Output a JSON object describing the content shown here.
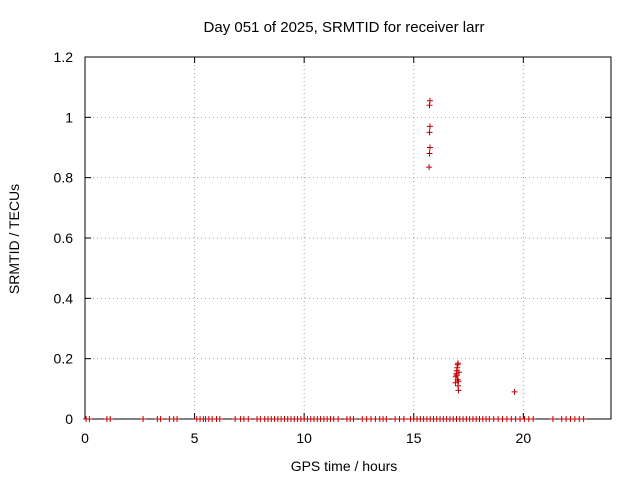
{
  "chart_data": {
    "type": "scatter",
    "title": "Day 051 of 2025, SRMTID for receiver larr",
    "xlabel": "GPS time / hours",
    "ylabel": "SRMTID / TECUs",
    "xlim": [
      0,
      24
    ],
    "ylim": [
      0,
      1.2
    ],
    "xticks": [
      0,
      5,
      10,
      15,
      20
    ],
    "yticks": [
      0,
      0.2,
      0.4,
      0.6,
      0.8,
      1,
      1.2
    ],
    "xtick_labels": [
      "0",
      "5",
      "10",
      "15",
      "20"
    ],
    "ytick_labels": [
      "0",
      "0.2",
      "0.4",
      "0.6",
      "0.8",
      "1",
      "1.2"
    ],
    "grid": true,
    "marker": "+",
    "color": "#c00000",
    "series": [
      {
        "name": "SRMTID",
        "points": [
          [
            0.05,
            0
          ],
          [
            0.2,
            0
          ],
          [
            1.0,
            0
          ],
          [
            1.15,
            0
          ],
          [
            2.65,
            0
          ],
          [
            3.3,
            0
          ],
          [
            3.45,
            0
          ],
          [
            3.85,
            0
          ],
          [
            4.05,
            0
          ],
          [
            4.2,
            0
          ],
          [
            5.1,
            0
          ],
          [
            5.25,
            0
          ],
          [
            5.4,
            0
          ],
          [
            5.5,
            0
          ],
          [
            5.65,
            0
          ],
          [
            5.8,
            0
          ],
          [
            6.0,
            0
          ],
          [
            6.15,
            0
          ],
          [
            6.85,
            0
          ],
          [
            7.1,
            0
          ],
          [
            7.25,
            0
          ],
          [
            7.45,
            0
          ],
          [
            7.85,
            0
          ],
          [
            8.0,
            0
          ],
          [
            8.2,
            0
          ],
          [
            8.35,
            0
          ],
          [
            8.5,
            0
          ],
          [
            8.65,
            0
          ],
          [
            8.8,
            0
          ],
          [
            8.95,
            0
          ],
          [
            9.1,
            0
          ],
          [
            9.25,
            0
          ],
          [
            9.4,
            0
          ],
          [
            9.55,
            0
          ],
          [
            9.7,
            0
          ],
          [
            9.85,
            0
          ],
          [
            10.0,
            0
          ],
          [
            10.15,
            0
          ],
          [
            10.3,
            0
          ],
          [
            10.45,
            0
          ],
          [
            10.6,
            0
          ],
          [
            10.75,
            0
          ],
          [
            10.9,
            0
          ],
          [
            11.05,
            0
          ],
          [
            11.2,
            0
          ],
          [
            11.35,
            0
          ],
          [
            11.55,
            0
          ],
          [
            11.95,
            0
          ],
          [
            12.1,
            0
          ],
          [
            12.25,
            0
          ],
          [
            12.65,
            0
          ],
          [
            12.85,
            0
          ],
          [
            13.05,
            0
          ],
          [
            13.25,
            0
          ],
          [
            13.45,
            0
          ],
          [
            13.6,
            0
          ],
          [
            13.75,
            0
          ],
          [
            14.15,
            0
          ],
          [
            14.35,
            0
          ],
          [
            14.55,
            0
          ],
          [
            14.85,
            0
          ],
          [
            15.0,
            0
          ],
          [
            15.15,
            0
          ],
          [
            15.3,
            0
          ],
          [
            15.45,
            0
          ],
          [
            15.6,
            0
          ],
          [
            15.75,
            0
          ],
          [
            15.9,
            0
          ],
          [
            16.05,
            0
          ],
          [
            16.2,
            0
          ],
          [
            16.35,
            0
          ],
          [
            16.5,
            0
          ],
          [
            16.65,
            0
          ],
          [
            16.8,
            0
          ],
          [
            16.95,
            0
          ],
          [
            17.1,
            0
          ],
          [
            17.25,
            0
          ],
          [
            17.4,
            0
          ],
          [
            17.55,
            0
          ],
          [
            17.7,
            0
          ],
          [
            17.85,
            0
          ],
          [
            18.0,
            0
          ],
          [
            18.15,
            0
          ],
          [
            18.3,
            0
          ],
          [
            18.45,
            0
          ],
          [
            18.65,
            0
          ],
          [
            18.85,
            0
          ],
          [
            19.05,
            0
          ],
          [
            19.25,
            0
          ],
          [
            19.45,
            0
          ],
          [
            19.65,
            0
          ],
          [
            19.85,
            0
          ],
          [
            20.05,
            0
          ],
          [
            20.25,
            0
          ],
          [
            20.45,
            0
          ],
          [
            21.35,
            0
          ],
          [
            21.75,
            0
          ],
          [
            21.95,
            0
          ],
          [
            22.15,
            0
          ],
          [
            22.35,
            0
          ],
          [
            22.55,
            0
          ],
          [
            22.75,
            0
          ],
          [
            15.7,
            0.835
          ],
          [
            15.72,
            0.88
          ],
          [
            15.74,
            0.9
          ],
          [
            15.72,
            0.95
          ],
          [
            15.74,
            0.97
          ],
          [
            15.72,
            1.04
          ],
          [
            15.74,
            1.055
          ],
          [
            16.9,
            0.12
          ],
          [
            16.92,
            0.14
          ],
          [
            16.94,
            0.15
          ],
          [
            16.96,
            0.16
          ],
          [
            16.98,
            0.17
          ],
          [
            17.0,
            0.18
          ],
          [
            17.02,
            0.185
          ],
          [
            17.0,
            0.13
          ],
          [
            17.02,
            0.11
          ],
          [
            17.04,
            0.095
          ],
          [
            16.96,
            0.145
          ],
          [
            17.06,
            0.155
          ],
          [
            17.04,
            0.125
          ],
          [
            19.6,
            0.09
          ]
        ]
      }
    ]
  }
}
